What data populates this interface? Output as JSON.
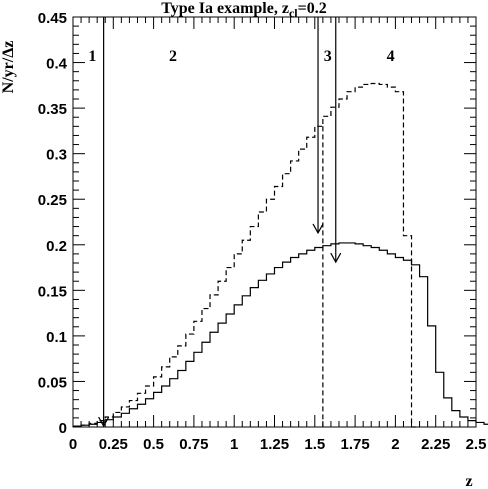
{
  "chart_data": {
    "type": "line",
    "title": {
      "prefix": "Type Ia example, z",
      "subscript": "cl",
      "suffix": "=0.2"
    },
    "xlabel": "z",
    "ylabel": "N/yr/Δz",
    "xlim": [
      0,
      2.5
    ],
    "ylim": [
      0,
      0.45
    ],
    "x_ticks": [
      {
        "value": 0,
        "label": "0"
      },
      {
        "value": 0.25,
        "label": "0.25"
      },
      {
        "value": 0.5,
        "label": "0.5"
      },
      {
        "value": 0.75,
        "label": "0.75"
      },
      {
        "value": 1,
        "label": "1"
      },
      {
        "value": 1.25,
        "label": "1.25"
      },
      {
        "value": 1.5,
        "label": "1.5"
      },
      {
        "value": 1.75,
        "label": "1.75"
      },
      {
        "value": 2,
        "label": "2"
      },
      {
        "value": 2.25,
        "label": "2.25"
      },
      {
        "value": 2.5,
        "label": "2.5"
      }
    ],
    "y_ticks": [
      {
        "value": 0,
        "label": "0"
      },
      {
        "value": 0.05,
        "label": "0.05"
      },
      {
        "value": 0.1,
        "label": "0.1"
      },
      {
        "value": 0.15,
        "label": "0.15"
      },
      {
        "value": 0.2,
        "label": "0.2"
      },
      {
        "value": 0.25,
        "label": "0.25"
      },
      {
        "value": 0.3,
        "label": "0.3"
      },
      {
        "value": 0.35,
        "label": "0.35"
      },
      {
        "value": 0.4,
        "label": "0.4"
      },
      {
        "value": 0.45,
        "label": "0.45"
      }
    ],
    "grid": false,
    "bin_width": 0.05,
    "series": [
      {
        "style": "dashed",
        "bin_start": 0,
        "values": [
          0.001,
          0.002,
          0.004,
          0.007,
          0.011,
          0.016,
          0.022,
          0.029,
          0.037,
          0.045,
          0.055,
          0.066,
          0.077,
          0.089,
          0.102,
          0.116,
          0.13,
          0.145,
          0.16,
          0.175,
          0.19,
          0.205,
          0.22,
          0.236,
          0.25,
          0.264,
          0.278,
          0.292,
          0.305,
          0.318,
          0.33,
          0.341,
          0.351,
          0.36,
          0.368,
          0.373,
          0.376,
          0.377,
          0.376,
          0.373,
          0.368,
          0.21,
          0.0
        ]
      },
      {
        "style": "solid",
        "bin_start": 0,
        "values": [
          0.001,
          0.002,
          0.003,
          0.005,
          0.008,
          0.011,
          0.015,
          0.02,
          0.025,
          0.031,
          0.038,
          0.045,
          0.053,
          0.062,
          0.072,
          0.082,
          0.093,
          0.104,
          0.114,
          0.124,
          0.134,
          0.144,
          0.153,
          0.161,
          0.168,
          0.175,
          0.181,
          0.186,
          0.19,
          0.194,
          0.197,
          0.199,
          0.201,
          0.202,
          0.202,
          0.201,
          0.199,
          0.197,
          0.194,
          0.19,
          0.186,
          0.183,
          0.178,
          0.165,
          0.111,
          0.06,
          0.032,
          0.018,
          0.011,
          0.007,
          0.005,
          0.003,
          0.002,
          0.001,
          0.001,
          0.0,
          0.0,
          0.0,
          0.0,
          0.0
        ]
      }
    ],
    "dashed_cut": {
      "x": 1.55
    },
    "arrows": [
      {
        "x": 0.19,
        "y_top": 0.45,
        "y_tip": 0.001
      },
      {
        "x": 1.52,
        "y_top": 0.45,
        "y_tip": 0.213
      },
      {
        "x": 1.63,
        "y_top": 0.45,
        "y_tip": 0.181
      }
    ],
    "regions": [
      {
        "label": "1",
        "x": 0.12
      },
      {
        "label": "2",
        "x": 0.62
      },
      {
        "label": "3",
        "x": 1.58
      },
      {
        "label": "4",
        "x": 1.97
      }
    ]
  }
}
